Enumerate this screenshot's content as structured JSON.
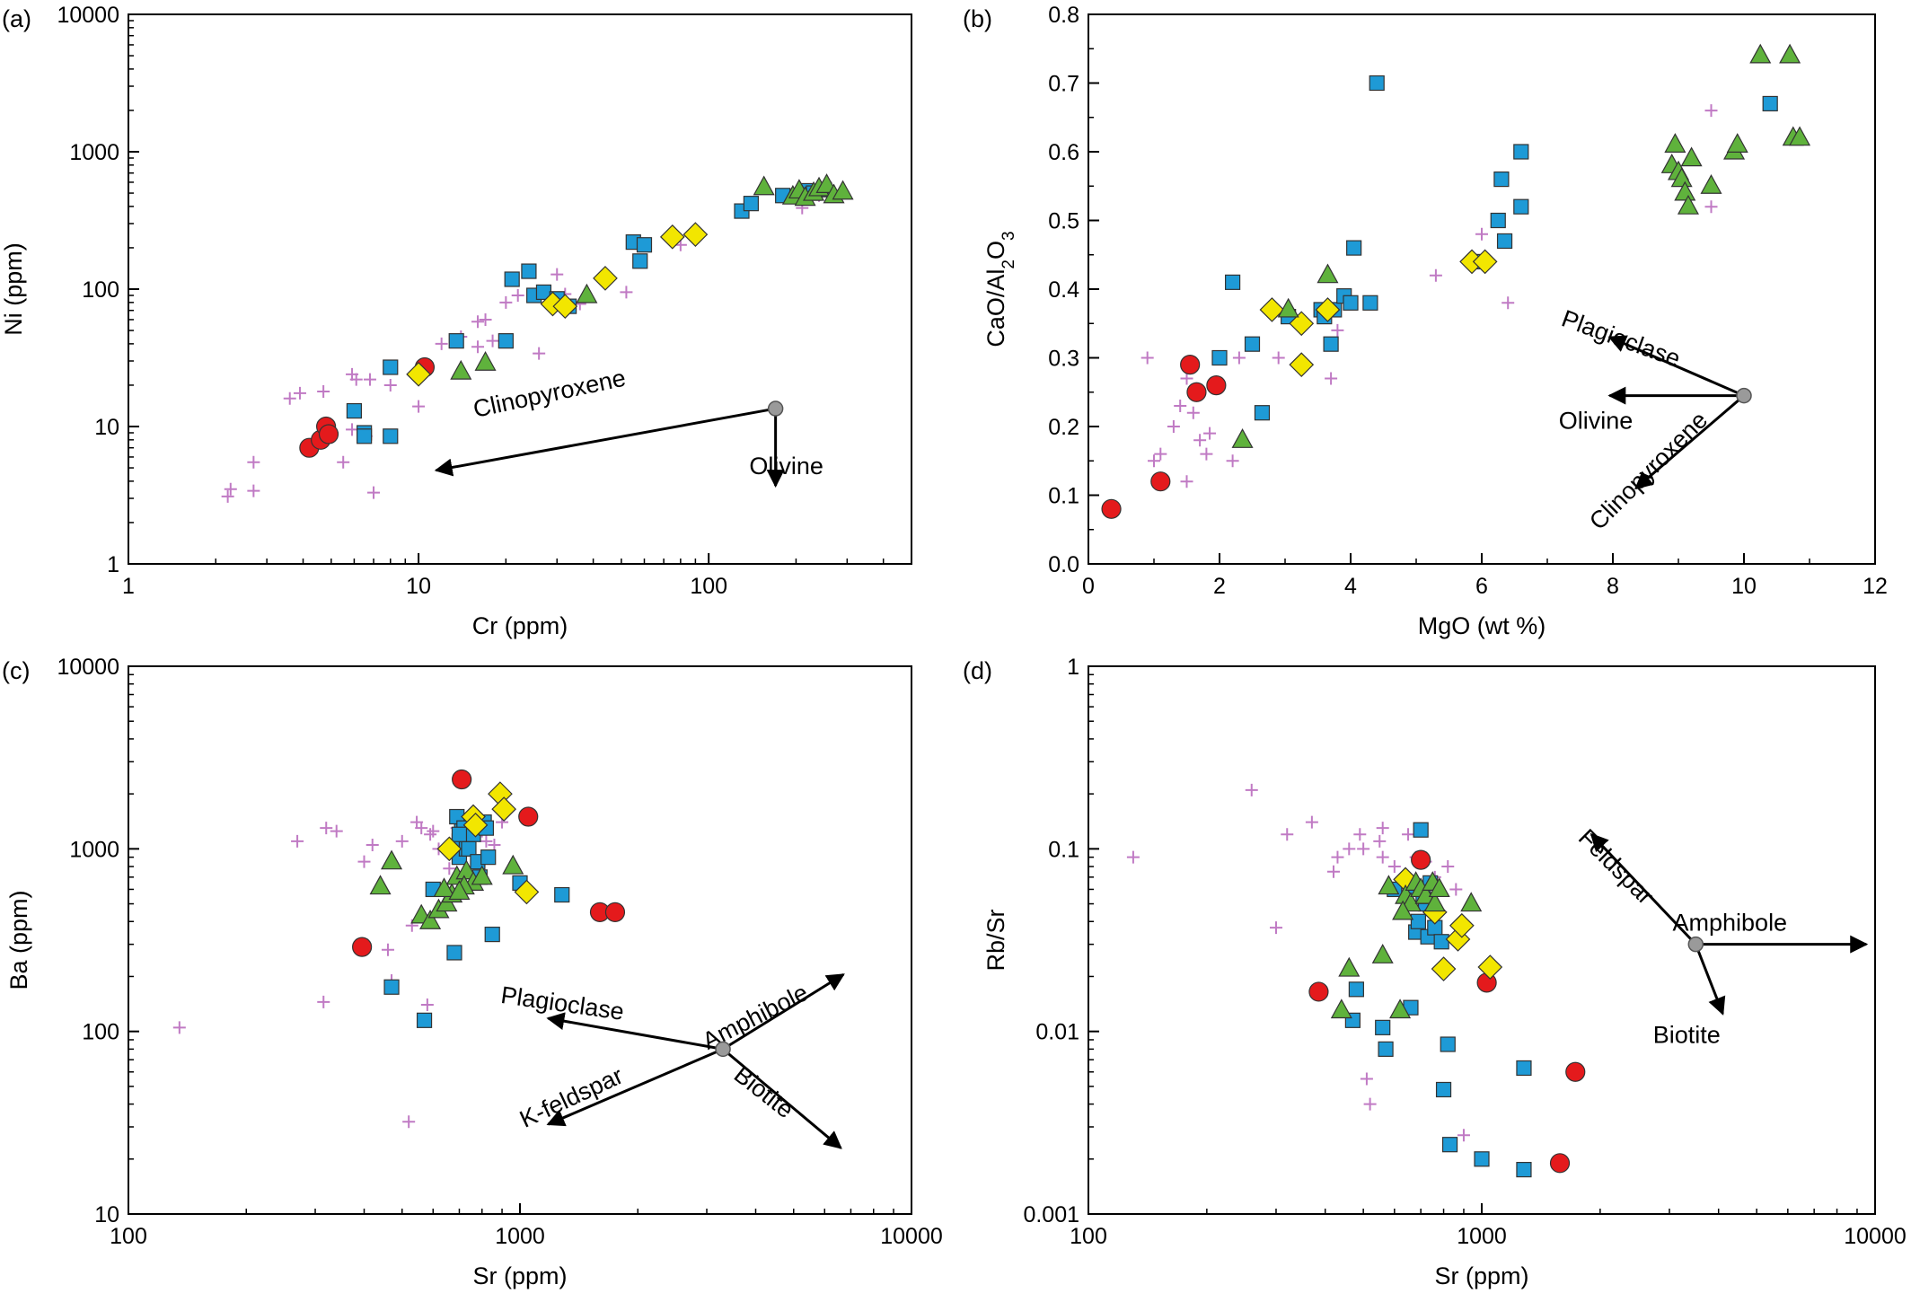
{
  "colors": {
    "tonalite": "#e41a1c",
    "granodiorite": "#f2e600",
    "diorite": "#1e9ad6",
    "gabbro": "#5fb23c",
    "crosses": "#c07ac4",
    "vector_origin": "#9a9a9a"
  },
  "chart_data": [
    {
      "type": "scatter",
      "panel": "(a)",
      "xlabel": "Cr (ppm)",
      "ylabel": "Ni (ppm)",
      "xscale": "log",
      "yscale": "log",
      "xlim": [
        1,
        500
      ],
      "ylim": [
        1,
        10000
      ],
      "xticks": [
        1,
        10,
        100
      ],
      "xtick_labels": [
        "1",
        "10",
        "100"
      ],
      "yticks": [
        1,
        10,
        100,
        1000,
        10000
      ],
      "ytick_labels": [
        "1",
        "10",
        "100",
        "1000",
        "10000"
      ],
      "series": [
        {
          "marker": "cross",
          "color": "#c07ac4",
          "x": [
            2.2,
            2.25,
            2.7,
            3.6,
            3.9,
            4.5,
            5.5,
            5.9,
            6.1,
            6.6,
            7.0,
            8.0,
            10,
            12,
            16,
            17,
            18,
            20,
            22,
            26,
            30,
            32,
            36,
            52,
            80,
            210,
            240,
            2.7,
            4.7,
            6.8,
            5.9,
            14,
            16
          ],
          "y": [
            3.1,
            3.5,
            3.4,
            16,
            17.5,
            7.5,
            5.5,
            24,
            22,
            8.5,
            3.3,
            20,
            14,
            40,
            58,
            60,
            42,
            80,
            90,
            34,
            128,
            92,
            78,
            95,
            210,
            390,
            480,
            5.5,
            18,
            22,
            9.5,
            45,
            38
          ]
        },
        {
          "marker": "square",
          "color": "#1e9ad6",
          "x": [
            6.0,
            6.5,
            6.5,
            8.0,
            8.0,
            13.5,
            20,
            21,
            24,
            25,
            27,
            30,
            33,
            55,
            60,
            58,
            130,
            140,
            180,
            215,
            230,
            250
          ],
          "y": [
            13,
            9,
            8.5,
            27,
            8.5,
            42,
            42,
            118,
            135,
            90,
            95,
            85,
            75,
            220,
            210,
            160,
            370,
            420,
            480,
            520,
            500,
            530
          ]
        },
        {
          "marker": "circle",
          "color": "#e41a1c",
          "x": [
            4.2,
            4.6,
            4.8,
            4.9,
            10.5
          ],
          "y": [
            7,
            8,
            10,
            8.8,
            27
          ]
        },
        {
          "marker": "diamond",
          "color": "#f2e600",
          "x": [
            10,
            29,
            32,
            44,
            75,
            90
          ],
          "y": [
            24,
            78,
            75,
            120,
            240,
            250
          ]
        },
        {
          "marker": "triangle",
          "color": "#5fb23c",
          "x": [
            14,
            17,
            38,
            155,
            195,
            205,
            215,
            230,
            240,
            255,
            270,
            290
          ],
          "y": [
            25,
            29,
            90,
            550,
            470,
            520,
            460,
            500,
            540,
            570,
            480,
            510
          ]
        }
      ],
      "vectors": {
        "origin": [
          170,
          13.5
        ],
        "arrows": [
          {
            "label": "Clinopyroxene",
            "to": [
              11.5,
              4.8
            ]
          },
          {
            "label": "Olivine",
            "to": [
              170,
              3.7
            ]
          }
        ]
      }
    },
    {
      "type": "scatter",
      "panel": "(b)",
      "xlabel": "MgO (wt %)",
      "ylabel_main": "CaO/Al",
      "ylabel_sub": "2",
      "ylabel_after": "O",
      "ylabel_sub2": "3",
      "xscale": "linear",
      "yscale": "linear",
      "xlim": [
        0,
        12
      ],
      "ylim": [
        0,
        0.8
      ],
      "xticks": [
        0,
        2,
        4,
        6,
        8,
        10,
        12
      ],
      "xtick_labels": [
        "0",
        "2",
        "4",
        "6",
        "8",
        "10",
        "12"
      ],
      "yticks": [
        0,
        0.1,
        0.2,
        0.3,
        0.4,
        0.5,
        0.6,
        0.7,
        0.8
      ],
      "ytick_labels": [
        "0.0",
        "0.1",
        "0.2",
        "0.3",
        "0.4",
        "0.5",
        "0.6",
        "0.7",
        "0.8"
      ],
      "series": [
        {
          "marker": "cross",
          "color": "#c07ac4",
          "x": [
            0.9,
            1.0,
            1.1,
            1.3,
            1.4,
            1.5,
            1.6,
            1.7,
            1.8,
            1.85,
            2.2,
            2.3,
            2.9,
            3.7,
            3.8,
            5.3,
            5.9,
            6.0,
            6.4,
            9.5,
            9.5,
            1.5
          ],
          "y": [
            0.3,
            0.15,
            0.16,
            0.2,
            0.23,
            0.12,
            0.22,
            0.18,
            0.16,
            0.19,
            0.15,
            0.3,
            0.3,
            0.27,
            0.34,
            0.42,
            0.44,
            0.48,
            0.38,
            0.66,
            0.52,
            0.27
          ]
        },
        {
          "marker": "square",
          "color": "#1e9ad6",
          "x": [
            2.0,
            2.2,
            2.5,
            2.65,
            3.05,
            3.55,
            3.6,
            3.7,
            3.75,
            3.9,
            4.0,
            4.05,
            4.3,
            4.4,
            6.0,
            6.25,
            6.3,
            6.35,
            6.6,
            6.6,
            10.4
          ],
          "y": [
            0.3,
            0.41,
            0.32,
            0.22,
            0.36,
            0.37,
            0.36,
            0.32,
            0.37,
            0.39,
            0.38,
            0.46,
            0.38,
            0.7,
            0.44,
            0.5,
            0.56,
            0.47,
            0.6,
            0.52,
            0.67
          ]
        },
        {
          "marker": "circle",
          "color": "#e41a1c",
          "x": [
            0.35,
            1.1,
            1.55,
            1.65,
            1.95
          ],
          "y": [
            0.08,
            0.12,
            0.29,
            0.25,
            0.26
          ]
        },
        {
          "marker": "diamond",
          "color": "#f2e600",
          "x": [
            2.8,
            3.25,
            3.25,
            3.65,
            5.85,
            6.05
          ],
          "y": [
            0.37,
            0.35,
            0.29,
            0.37,
            0.44,
            0.44
          ]
        },
        {
          "marker": "triangle",
          "color": "#5fb23c",
          "x": [
            2.35,
            3.05,
            3.65,
            8.9,
            8.95,
            9.0,
            9.05,
            9.1,
            9.15,
            9.2,
            9.5,
            9.85,
            9.9,
            10.25,
            10.7,
            10.75,
            10.85
          ],
          "y": [
            0.18,
            0.37,
            0.42,
            0.58,
            0.61,
            0.57,
            0.56,
            0.54,
            0.52,
            0.59,
            0.55,
            0.6,
            0.61,
            0.74,
            0.74,
            0.62,
            0.62
          ]
        }
      ],
      "vectors": {
        "origin": [
          10.0,
          0.245
        ],
        "arrows": [
          {
            "label": "Plagioclase",
            "to": [
              7.95,
              0.33
            ]
          },
          {
            "label": "Olivine",
            "to": [
              7.95,
              0.245
            ]
          },
          {
            "label": "Clinopyroxene",
            "to": [
              8.35,
              0.11
            ]
          }
        ]
      }
    },
    {
      "type": "scatter",
      "panel": "(c)",
      "xlabel": "Sr (ppm)",
      "ylabel": "Ba (ppm)",
      "xscale": "log",
      "yscale": "log",
      "xlim": [
        100,
        10000
      ],
      "ylim": [
        10,
        10000
      ],
      "xticks": [
        100,
        1000,
        10000
      ],
      "xtick_labels": [
        "100",
        "1000",
        "10000"
      ],
      "yticks": [
        10,
        100,
        1000,
        10000
      ],
      "ytick_labels": [
        "10",
        "100",
        "1000",
        "10000"
      ],
      "series": [
        {
          "marker": "cross",
          "color": "#c07ac4",
          "x": [
            135,
            270,
            315,
            340,
            400,
            420,
            460,
            470,
            500,
            520,
            530,
            545,
            560,
            580,
            600,
            620,
            660,
            690,
            720,
            760,
            800,
            820,
            860,
            900,
            320,
            590
          ],
          "y": [
            105,
            1100,
            145,
            1250,
            850,
            1050,
            280,
            190,
            1100,
            32,
            380,
            1400,
            1300,
            140,
            1250,
            1000,
            780,
            1300,
            1100,
            1500,
            1250,
            1100,
            1050,
            1400,
            1300,
            1200
          ]
        },
        {
          "marker": "square",
          "color": "#1e9ad6",
          "x": [
            470,
            570,
            600,
            680,
            690,
            700,
            700,
            710,
            720,
            730,
            740,
            760,
            780,
            790,
            810,
            830,
            850,
            1000,
            1280,
            700,
            820
          ],
          "y": [
            175,
            115,
            600,
            270,
            1500,
            1100,
            900,
            1250,
            1300,
            1000,
            1000,
            1200,
            850,
            700,
            1400,
            900,
            340,
            650,
            560,
            1200,
            1300
          ]
        },
        {
          "marker": "circle",
          "color": "#e41a1c",
          "x": [
            395,
            710,
            1050,
            1600,
            1750
          ],
          "y": [
            290,
            2400,
            1500,
            450,
            450
          ]
        },
        {
          "marker": "diamond",
          "color": "#f2e600",
          "x": [
            660,
            760,
            770,
            890,
            910,
            1040
          ],
          "y": [
            1000,
            1500,
            1350,
            2000,
            1650,
            580
          ]
        },
        {
          "marker": "triangle",
          "color": "#5fb23c",
          "x": [
            440,
            470,
            560,
            590,
            620,
            650,
            670,
            690,
            730,
            760,
            800,
            960,
            720,
            640,
            700
          ],
          "y": [
            620,
            850,
            430,
            400,
            460,
            500,
            560,
            700,
            750,
            650,
            700,
            800,
            620,
            600,
            580
          ]
        }
      ],
      "vectors": {
        "origin": [
          3300,
          80
        ],
        "arrows": [
          {
            "label": "Plagioclase",
            "to": [
              1180,
              118
            ]
          },
          {
            "label": "Amphibole",
            "to": [
              6700,
              205
            ]
          },
          {
            "label": "K-feldspar",
            "to": [
              1180,
              31
            ]
          },
          {
            "label": "Biotite",
            "to": [
              6600,
              23
            ]
          }
        ]
      }
    },
    {
      "type": "scatter",
      "panel": "(d)",
      "xlabel": "Sr (ppm)",
      "ylabel": "Rb/Sr",
      "xscale": "log",
      "yscale": "log",
      "xlim": [
        100,
        10000
      ],
      "ylim": [
        0.001,
        1
      ],
      "xticks": [
        100,
        1000,
        10000
      ],
      "xtick_labels": [
        "100",
        "1000",
        "10000"
      ],
      "yticks": [
        0.001,
        0.01,
        0.1,
        1
      ],
      "ytick_labels": [
        "0.001",
        "0.01",
        "0.1",
        "1"
      ],
      "series": [
        {
          "marker": "cross",
          "color": "#c07ac4",
          "x": [
            130,
            260,
            300,
            320,
            370,
            420,
            430,
            460,
            490,
            510,
            520,
            550,
            560,
            600,
            640,
            650,
            680,
            720,
            760,
            820,
            860,
            900,
            500,
            560
          ],
          "y": [
            0.09,
            0.21,
            0.037,
            0.12,
            0.14,
            0.075,
            0.09,
            0.1,
            0.12,
            0.0055,
            0.004,
            0.11,
            0.13,
            0.08,
            0.06,
            0.12,
            0.09,
            0.085,
            0.07,
            0.08,
            0.06,
            0.0027,
            0.1,
            0.09
          ]
        },
        {
          "marker": "square",
          "color": "#1e9ad6",
          "x": [
            470,
            480,
            560,
            570,
            600,
            660,
            680,
            690,
            700,
            720,
            730,
            740,
            760,
            790,
            800,
            820,
            830,
            1000,
            1280,
            1280,
            680,
            710
          ],
          "y": [
            0.0115,
            0.017,
            0.0105,
            0.008,
            0.06,
            0.0135,
            0.035,
            0.04,
            0.127,
            0.05,
            0.033,
            0.065,
            0.037,
            0.031,
            0.0048,
            0.0085,
            0.0024,
            0.002,
            0.0063,
            0.00175,
            0.06,
            0.055
          ]
        },
        {
          "marker": "circle",
          "color": "#e41a1c",
          "x": [
            385,
            700,
            1030,
            1580,
            1730
          ],
          "y": [
            0.0165,
            0.087,
            0.0185,
            0.0019,
            0.006
          ]
        },
        {
          "marker": "diamond",
          "color": "#f2e600",
          "x": [
            640,
            760,
            800,
            870,
            890,
            1050
          ],
          "y": [
            0.068,
            0.045,
            0.022,
            0.032,
            0.038,
            0.0225
          ]
        },
        {
          "marker": "triangle",
          "color": "#5fb23c",
          "x": [
            460,
            440,
            560,
            580,
            620,
            640,
            660,
            680,
            700,
            720,
            750,
            760,
            780,
            940,
            630
          ],
          "y": [
            0.022,
            0.013,
            0.026,
            0.062,
            0.013,
            0.055,
            0.05,
            0.065,
            0.06,
            0.055,
            0.065,
            0.05,
            0.06,
            0.05,
            0.045
          ]
        }
      ],
      "vectors": {
        "origin": [
          3500,
          0.03
        ],
        "arrows": [
          {
            "label": "Feldspar",
            "to": [
              1900,
              0.12
            ]
          },
          {
            "label": "Amphibole",
            "to": [
              9500,
              0.03
            ]
          },
          {
            "label": "Biotite",
            "to": [
              4100,
              0.0125
            ]
          }
        ]
      }
    }
  ]
}
